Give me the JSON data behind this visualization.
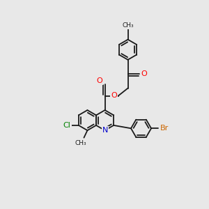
{
  "bg_color": "#e8e8e8",
  "bond_color": "#1a1a1a",
  "bond_width": 1.3,
  "atom_colors": {
    "O": "#ff0000",
    "N": "#0000cc",
    "Cl": "#008000",
    "Br": "#cc6600",
    "C": "#1a1a1a"
  },
  "font_size": 6.5,
  "xlim": [
    0,
    10
  ],
  "ylim": [
    0,
    10
  ],
  "figsize": [
    3.0,
    3.0
  ],
  "dpi": 100
}
